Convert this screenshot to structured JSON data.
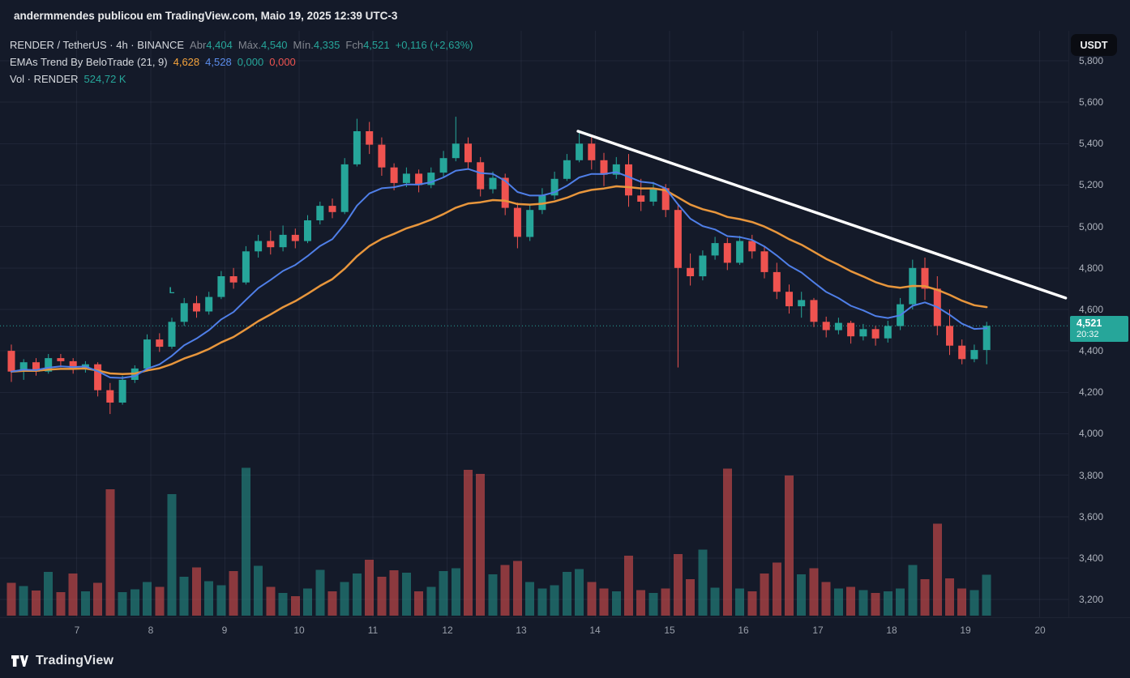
{
  "header": {
    "share_text": "andermmendes publicou em TradingView.com, Maio 19, 2025 12:39 UTC-3"
  },
  "toolbar": {
    "currency": "USDT"
  },
  "legend": {
    "symbol": {
      "title": "RENDER / TetherUS · 4h · BINANCE",
      "open_label": "Abr",
      "open": "4,404",
      "high_label": "Máx.",
      "high": "4,540",
      "low_label": "Mín.",
      "low": "4,335",
      "close_label": "Fch",
      "close": "4,521",
      "change": "+0,116 (+2,63%)"
    },
    "ema": {
      "title": "EMAs Trend By BeloTrade (21, 9)",
      "v1": "4,628",
      "v2": "4,528",
      "v3": "0,000",
      "v4": "0,000"
    },
    "volume": {
      "title": "Vol · RENDER",
      "value": "524,72 K"
    }
  },
  "price_axis": {
    "labels": [
      "5,800",
      "5,600",
      "5,400",
      "5,200",
      "5,000",
      "4,800",
      "4,600",
      "4,400",
      "4,200",
      "4,000",
      "3,800",
      "3,600",
      "3,400",
      "3,200"
    ],
    "badge": {
      "price": "4,521",
      "countdown": "20:32"
    }
  },
  "time_axis": {
    "labels": [
      "7",
      "8",
      "9",
      "10",
      "11",
      "12",
      "13",
      "14",
      "15",
      "16",
      "17",
      "18",
      "19",
      "20"
    ]
  },
  "footer": {
    "brand": "TradingView"
  },
  "colors": {
    "up": "#26a69a",
    "down": "#ef5350",
    "ema_fast": "#4f7fe8",
    "ema_slow": "#e8963c",
    "trendline": "#ffffff",
    "grid": "rgba(141,155,183,0.09)",
    "badge_bg": "#26a69a"
  },
  "chart_data": {
    "type": "candlestick",
    "symbol": "RENDER/TetherUS",
    "exchange": "BINANCE",
    "timeframe": "4h",
    "last_price": 4521,
    "last_candle": {
      "open": 4404,
      "high": 4540,
      "low": 4335,
      "close": 4521,
      "change": "+0,116 (+2,63%)"
    },
    "ema_fast_period": 9,
    "ema_slow_period": 21,
    "price_axis_range": [
      3200,
      5800
    ],
    "candles": [
      [
        4400,
        4430,
        4250,
        4300
      ],
      [
        4300,
        4360,
        4260,
        4345
      ],
      [
        4345,
        4365,
        4280,
        4300
      ],
      [
        4300,
        4385,
        4290,
        4365
      ],
      [
        4365,
        4385,
        4320,
        4350
      ],
      [
        4350,
        4365,
        4290,
        4310
      ],
      [
        4310,
        4350,
        4295,
        4335
      ],
      [
        4335,
        4345,
        4180,
        4210
      ],
      [
        4210,
        4245,
        4095,
        4150
      ],
      [
        4150,
        4280,
        4140,
        4260
      ],
      [
        4260,
        4330,
        4245,
        4315
      ],
      [
        4315,
        4480,
        4300,
        4455
      ],
      [
        4455,
        4485,
        4395,
        4420
      ],
      [
        4420,
        4560,
        4410,
        4540
      ],
      [
        4540,
        4655,
        4520,
        4630
      ],
      [
        4630,
        4665,
        4560,
        4590
      ],
      [
        4590,
        4685,
        4575,
        4660
      ],
      [
        4660,
        4785,
        4650,
        4760
      ],
      [
        4760,
        4800,
        4700,
        4730
      ],
      [
        4730,
        4905,
        4720,
        4880
      ],
      [
        4880,
        4960,
        4850,
        4930
      ],
      [
        4930,
        4980,
        4865,
        4900
      ],
      [
        4900,
        5005,
        4880,
        4960
      ],
      [
        4960,
        4990,
        4895,
        4930
      ],
      [
        4930,
        5055,
        4920,
        5030
      ],
      [
        5030,
        5120,
        5010,
        5100
      ],
      [
        5100,
        5135,
        5040,
        5070
      ],
      [
        5070,
        5330,
        5060,
        5300
      ],
      [
        5300,
        5520,
        5290,
        5460
      ],
      [
        5460,
        5505,
        5350,
        5395
      ],
      [
        5395,
        5430,
        5245,
        5285
      ],
      [
        5285,
        5305,
        5175,
        5210
      ],
      [
        5210,
        5285,
        5190,
        5255
      ],
      [
        5255,
        5275,
        5165,
        5200
      ],
      [
        5200,
        5285,
        5185,
        5260
      ],
      [
        5260,
        5365,
        5240,
        5330
      ],
      [
        5330,
        5530,
        5315,
        5400
      ],
      [
        5400,
        5430,
        5275,
        5310
      ],
      [
        5310,
        5335,
        5145,
        5180
      ],
      [
        5180,
        5265,
        5160,
        5235
      ],
      [
        5235,
        5255,
        5055,
        5090
      ],
      [
        5090,
        5115,
        4895,
        4950
      ],
      [
        4950,
        5105,
        4930,
        5080
      ],
      [
        5080,
        5185,
        5060,
        5150
      ],
      [
        5150,
        5265,
        5130,
        5230
      ],
      [
        5230,
        5350,
        5220,
        5320
      ],
      [
        5320,
        5455,
        5310,
        5400
      ],
      [
        5400,
        5430,
        5275,
        5320
      ],
      [
        5320,
        5355,
        5195,
        5250
      ],
      [
        5250,
        5335,
        5230,
        5300
      ],
      [
        5300,
        5350,
        5095,
        5150
      ],
      [
        5150,
        5230,
        5075,
        5120
      ],
      [
        5120,
        5215,
        5100,
        5185
      ],
      [
        5185,
        5205,
        5045,
        5080
      ],
      [
        5080,
        5105,
        4320,
        4800
      ],
      [
        4800,
        4870,
        4715,
        4760
      ],
      [
        4760,
        4885,
        4740,
        4860
      ],
      [
        4860,
        4950,
        4840,
        4920
      ],
      [
        4920,
        4945,
        4790,
        4825
      ],
      [
        4825,
        4955,
        4815,
        4930
      ],
      [
        4930,
        4960,
        4845,
        4880
      ],
      [
        4880,
        4905,
        4750,
        4780
      ],
      [
        4780,
        4825,
        4650,
        4685
      ],
      [
        4685,
        4720,
        4580,
        4615
      ],
      [
        4615,
        4685,
        4560,
        4645
      ],
      [
        4645,
        4655,
        4515,
        4540
      ],
      [
        4540,
        4565,
        4465,
        4500
      ],
      [
        4500,
        4560,
        4480,
        4535
      ],
      [
        4535,
        4545,
        4435,
        4470
      ],
      [
        4470,
        4530,
        4450,
        4505
      ],
      [
        4505,
        4520,
        4425,
        4460
      ],
      [
        4460,
        4545,
        4440,
        4520
      ],
      [
        4520,
        4655,
        4500,
        4625
      ],
      [
        4625,
        4840,
        4600,
        4800
      ],
      [
        4800,
        4850,
        4645,
        4700
      ],
      [
        4700,
        4760,
        4475,
        4520
      ],
      [
        4520,
        4600,
        4380,
        4425
      ],
      [
        4425,
        4455,
        4335,
        4360
      ],
      [
        4360,
        4430,
        4345,
        4404
      ],
      [
        4404,
        4540,
        4335,
        4521
      ]
    ],
    "volumes_k": [
      420,
      380,
      320,
      560,
      300,
      540,
      310,
      420,
      1620,
      300,
      340,
      430,
      370,
      1560,
      500,
      620,
      440,
      390,
      570,
      1900,
      640,
      370,
      290,
      250,
      350,
      590,
      310,
      430,
      540,
      720,
      500,
      580,
      550,
      310,
      370,
      570,
      610,
      1870,
      1820,
      530,
      650,
      700,
      430,
      350,
      390,
      560,
      600,
      430,
      350,
      310,
      770,
      330,
      290,
      350,
      790,
      470,
      850,
      360,
      1890,
      350,
      310,
      540,
      680,
      1800,
      530,
      610,
      430,
      350,
      370,
      330,
      290,
      310,
      350,
      650,
      470,
      1180,
      480,
      350,
      330,
      525
    ],
    "trendline": {
      "start": {
        "index": 45.9,
        "price": 5460
      },
      "end": {
        "index": 85.4,
        "price": 4655
      }
    },
    "signal": {
      "index": 13,
      "price": 4678,
      "text": "L"
    }
  }
}
